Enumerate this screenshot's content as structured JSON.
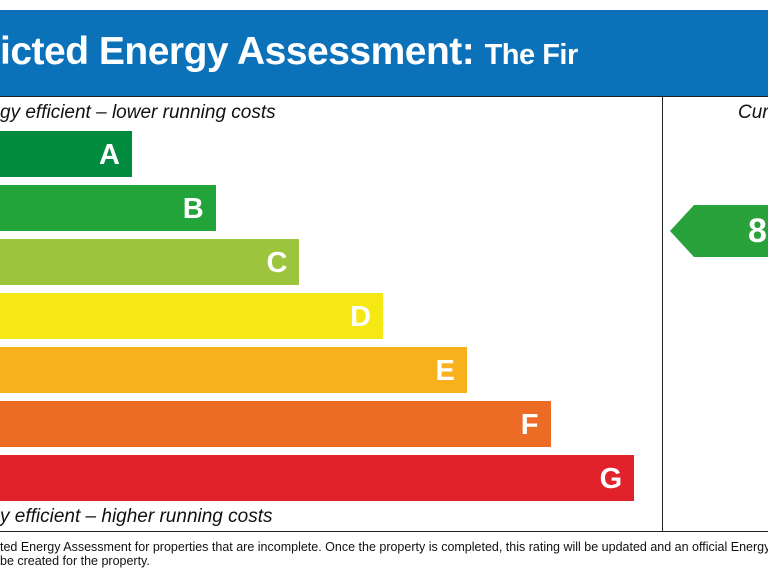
{
  "header": {
    "title": "icted Energy Assessment:",
    "property": "The Fir"
  },
  "scale": {
    "top_note": "gy efficient – lower running costs",
    "bottom_note": "y efficient – higher running costs",
    "bands": [
      {
        "letter": "A",
        "color": "#008b3f"
      },
      {
        "letter": "B",
        "color": "#23a43a"
      },
      {
        "letter": "C",
        "color": "#9dc43d"
      },
      {
        "letter": "D",
        "color": "#f5e813"
      },
      {
        "letter": "E",
        "color": "#f8b01c"
      },
      {
        "letter": "F",
        "color": "#ec6b25"
      },
      {
        "letter": "G",
        "color": "#e1222a"
      }
    ]
  },
  "current": {
    "header": "Cur",
    "rating": "8",
    "color": "#2aa23b"
  },
  "footer": [
    "ted Energy Assessment for properties that are incomplete. Once the property is completed, this rating will be updated and an official Energy",
    "be created for the property."
  ]
}
